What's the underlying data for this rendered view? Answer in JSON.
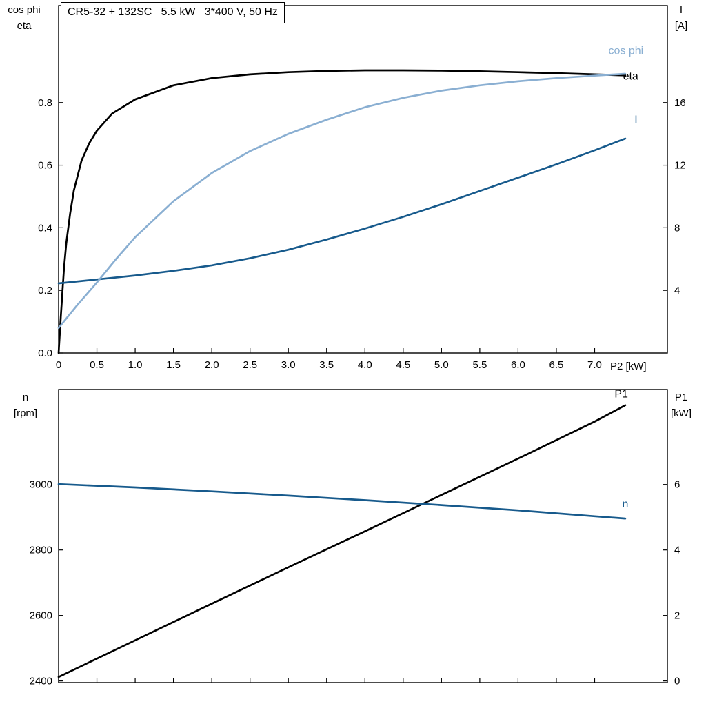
{
  "colors": {
    "black": "#000000",
    "light_blue": "#8aafd2",
    "dark_blue": "#175a8c",
    "frame": "#000000",
    "text": "#000000",
    "background": "#ffffff"
  },
  "chart_data": [
    {
      "type": "line",
      "title": "CR5-32 + 132SC   5.5 kW   3*400 V, 50 Hz",
      "xlabel": "P2 [kW]",
      "ylabel_left_lines": [
        "cos phi",
        "eta"
      ],
      "ylabel_right_lines": [
        "I",
        "[A]"
      ],
      "xlim": [
        0,
        7.95
      ],
      "ylim_left": [
        0,
        1.11
      ],
      "ylim_right": [
        0,
        22.2
      ],
      "grid": false,
      "legend": "curve labels at right end of each curve",
      "x_ticks": [
        0,
        0.5,
        1,
        1.5,
        2,
        2.5,
        3,
        3.5,
        4,
        4.5,
        5,
        5.5,
        6,
        6.5,
        7
      ],
      "x_tick_labels": [
        "0",
        "0.5",
        "1.0",
        "1.5",
        "2.0",
        "2.5",
        "3.0",
        "3.5",
        "4.0",
        "4.5",
        "5.0",
        "5.5",
        "6.0",
        "6.5",
        "7.0"
      ],
      "y_ticks_left": [
        0,
        0.2,
        0.4,
        0.6,
        0.8
      ],
      "y_tick_labels_left": [
        "0.0",
        "0.2",
        "0.4",
        "0.6",
        "0.8"
      ],
      "y_ticks_right": [
        4,
        8,
        12,
        16
      ],
      "y_tick_labels_right": [
        "4",
        "8",
        "12",
        "16"
      ],
      "series": [
        {
          "name": "eta",
          "axis": "left",
          "color": "black",
          "label_at": [
            7.37,
            0.873
          ],
          "x": [
            0,
            0.03,
            0.07,
            0.1,
            0.15,
            0.2,
            0.3,
            0.4,
            0.5,
            0.7,
            1.0,
            1.5,
            2.0,
            2.5,
            3.0,
            3.5,
            4.0,
            4.5,
            5.0,
            5.5,
            6.0,
            6.5,
            7.0,
            7.4
          ],
          "y": [
            0,
            0.12,
            0.27,
            0.35,
            0.445,
            0.52,
            0.615,
            0.67,
            0.71,
            0.765,
            0.81,
            0.855,
            0.878,
            0.89,
            0.897,
            0.901,
            0.903,
            0.903,
            0.902,
            0.9,
            0.897,
            0.894,
            0.89,
            0.887
          ]
        },
        {
          "name": "I",
          "axis": "right",
          "color": "dark_blue",
          "label_at": [
            7.52,
            14.7
          ],
          "x": [
            0,
            0.5,
            1.0,
            1.5,
            2.0,
            2.5,
            3.0,
            3.5,
            4.0,
            4.5,
            5.0,
            5.5,
            6.0,
            6.5,
            7.0,
            7.4
          ],
          "y": [
            4.45,
            4.7,
            4.95,
            5.25,
            5.6,
            6.05,
            6.6,
            7.25,
            7.95,
            8.7,
            9.5,
            10.35,
            11.2,
            12.05,
            12.95,
            13.7
          ]
        },
        {
          "name": "cos phi",
          "axis": "left",
          "color": "light_blue",
          "label_at": [
            7.18,
            0.955
          ],
          "x": [
            0,
            0.25,
            0.5,
            0.75,
            1.0,
            1.5,
            2.0,
            2.5,
            3.0,
            3.5,
            4.0,
            4.5,
            5.0,
            5.5,
            6.0,
            6.5,
            7.0,
            7.4
          ],
          "y": [
            0.08,
            0.155,
            0.225,
            0.3,
            0.37,
            0.485,
            0.575,
            0.645,
            0.7,
            0.745,
            0.785,
            0.815,
            0.838,
            0.855,
            0.868,
            0.878,
            0.886,
            0.892
          ]
        }
      ]
    },
    {
      "type": "line",
      "title": "",
      "xlabel": "",
      "ylabel_left_lines": [
        "n",
        "[rpm]"
      ],
      "ylabel_right_lines": [
        "P1",
        "[kW]"
      ],
      "xlim": [
        0,
        7.95
      ],
      "ylim_left": [
        2395,
        3290
      ],
      "ylim_right": [
        -0.05,
        8.9
      ],
      "grid": false,
      "legend": "curve labels at right end of each curve",
      "x_ticks": [
        0,
        0.5,
        1,
        1.5,
        2,
        2.5,
        3,
        3.5,
        4,
        4.5,
        5,
        5.5,
        6,
        6.5,
        7
      ],
      "x_tick_labels": [],
      "y_ticks_left": [
        2400,
        2600,
        2800,
        3000
      ],
      "y_tick_labels_left": [
        "2400",
        "2600",
        "2800",
        "3000"
      ],
      "y_ticks_right": [
        0,
        2,
        4,
        6
      ],
      "y_tick_labels_right": [
        "0",
        "2",
        "4",
        "6"
      ],
      "series": [
        {
          "name": "P1",
          "axis": "right",
          "color": "black",
          "label_at": [
            7.26,
            8.66
          ],
          "x": [
            0,
            1,
            2,
            3,
            4,
            5,
            6,
            7,
            7.4
          ],
          "y": [
            0.12,
            1.24,
            2.36,
            3.47,
            4.57,
            5.68,
            6.79,
            7.92,
            8.42
          ]
        },
        {
          "name": "n",
          "axis": "left",
          "color": "dark_blue",
          "label_at": [
            7.36,
            2930
          ],
          "x": [
            0,
            1,
            2,
            3,
            4,
            5,
            6,
            7,
            7.4
          ],
          "y": [
            3001,
            2991,
            2979,
            2966,
            2952,
            2937,
            2921,
            2903,
            2896
          ]
        }
      ]
    }
  ]
}
